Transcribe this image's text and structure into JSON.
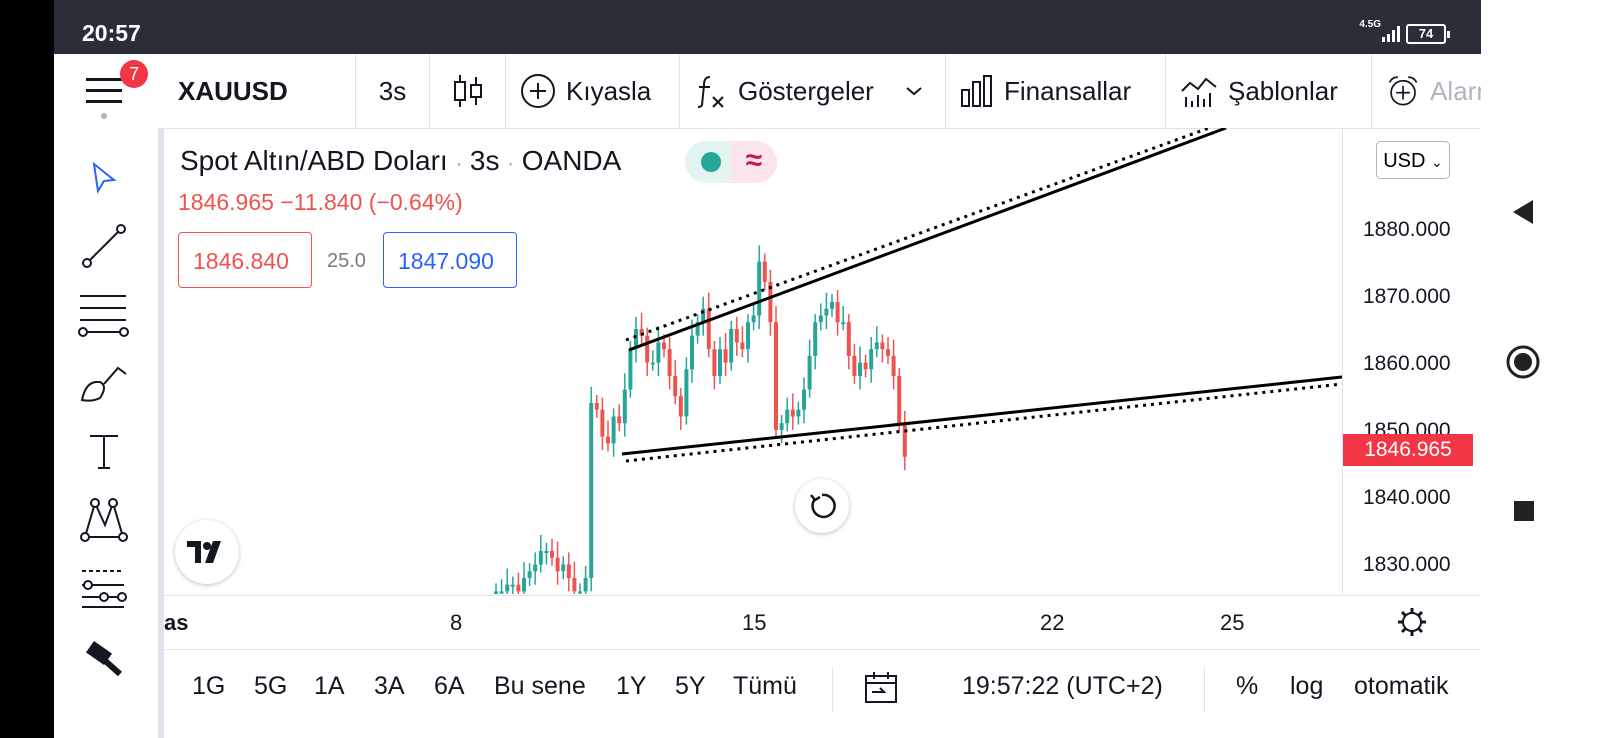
{
  "status_bar": {
    "time": "20:57",
    "network": "4.5G",
    "battery": "74"
  },
  "menu": {
    "badge": "7"
  },
  "toolbar": {
    "symbol": "XAUUSD",
    "interval": "3s",
    "compare": "Kıyasla",
    "indicators": "Göstergeler",
    "financials": "Finansallar",
    "templates": "Şablonlar",
    "alerts": "Alarm"
  },
  "legend": {
    "title": "Spot Altın/ABD Doları",
    "interval": "3s",
    "source": "OANDA",
    "separator": "·",
    "change": "1846.965  −11.840 (−0.64%)",
    "sell_price": "1846.840",
    "spread": "25.0",
    "buy_price": "1847.090"
  },
  "price_axis": {
    "currency": "USD",
    "current_price": "1846.965",
    "ticks": [
      "1880.000",
      "1870.000",
      "1860.000",
      "1850.000",
      "1840.000",
      "1830.000"
    ]
  },
  "time_axis": {
    "ticks": [
      "as",
      "8",
      "15",
      "22",
      "25"
    ]
  },
  "bottom_bar": {
    "ranges": [
      "1G",
      "5G",
      "1A",
      "3A",
      "6A",
      "Bu sene",
      "1Y",
      "5Y",
      "Tümü"
    ],
    "clock": "19:57:22 (UTC+2)",
    "percent": "%",
    "log": "log",
    "auto": "otomatik"
  },
  "colors": {
    "up": "#26a69a",
    "down": "#ef5350",
    "accent": "#2962ff",
    "badge": "#f23645"
  },
  "chart_data": {
    "type": "candlestick",
    "symbol": "XAUUSD",
    "interval": "3s",
    "ylim": [
      1825,
      1890
    ],
    "x_ticks": [
      "as",
      "8",
      "15",
      "22",
      "25"
    ],
    "series": [
      {
        "name": "",
        "values": [
          1826,
          1826,
          1827,
          1827,
          1826,
          1828,
          1829,
          1830,
          1832,
          1832,
          1831,
          1829,
          1830,
          1828,
          1826,
          1826,
          1828,
          1854,
          1853,
          1849,
          1848,
          1852,
          1851,
          1856,
          1862,
          1865,
          1864,
          1860,
          1860,
          1863,
          1862,
          1858,
          1855,
          1852,
          1859,
          1864,
          1866,
          1868,
          1862,
          1858,
          1862,
          1860,
          1865,
          1863,
          1862,
          1866,
          1867,
          1875,
          1872,
          1866,
          1850,
          1851,
          1853,
          1852,
          1853,
          1856,
          1861,
          1866,
          1867,
          1868,
          1869,
          1866,
          1866,
          1861,
          1858,
          1860,
          1859,
          1862,
          1863,
          1862,
          1861,
          1858,
          1851,
          1846
        ]
      }
    ]
  }
}
